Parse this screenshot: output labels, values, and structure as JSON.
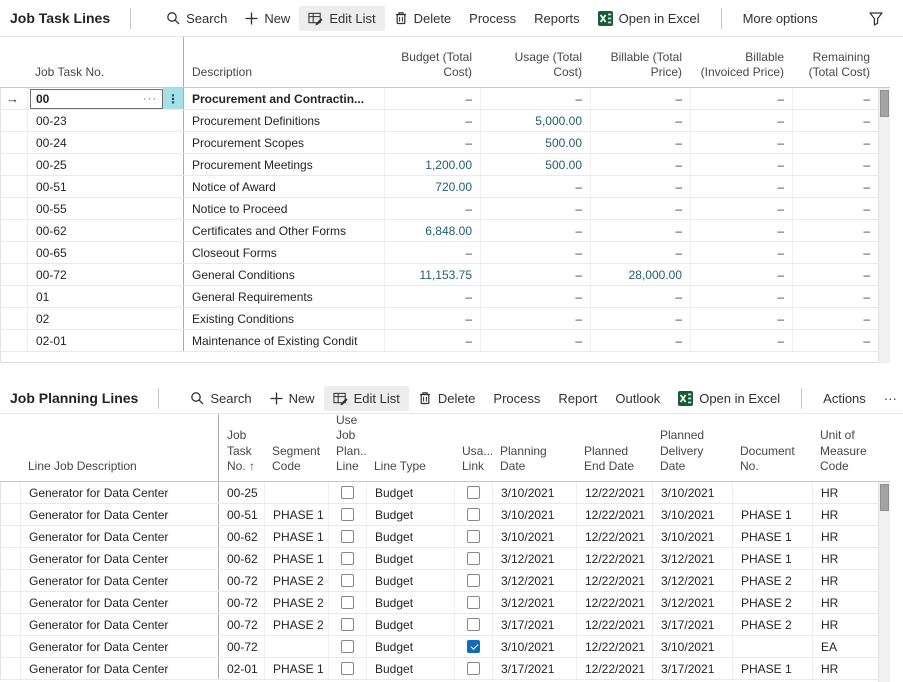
{
  "colors": {
    "selection_teal": "#a6e0e6",
    "value_link": "#1d5e6e",
    "checkbox_checked_blue": "#0f6cbd",
    "excel_green": "#185c37",
    "edit_list_chip": "#ededed"
  },
  "icons": {
    "assist_edit": "···",
    "row_menu": "⋮",
    "selected_row_arrow": "→",
    "more_ellipsis": "···"
  },
  "job_task_lines": {
    "title": "Job Task Lines",
    "toolbar": {
      "search": "Search",
      "new": "New",
      "edit_list": "Edit List",
      "delete": "Delete",
      "process": "Process",
      "reports": "Reports",
      "open_in_excel": "Open in Excel",
      "more_options": "More options"
    },
    "columns": [
      "Job Task No.",
      "Description",
      "Budget (Total Cost)",
      "Usage (Total Cost)",
      "Billable (Total Price)",
      "Billable (Invoiced Price)",
      "Remaining (Total Cost)"
    ],
    "rows": [
      {
        "no": "00",
        "desc": "Procurement and Contractin...",
        "values": [
          "–",
          "–",
          "–",
          "–",
          "–"
        ],
        "selected": true
      },
      {
        "no": "00-23",
        "desc": "Procurement Definitions",
        "values": [
          "–",
          "5,000.00",
          "–",
          "–",
          "–"
        ]
      },
      {
        "no": "00-24",
        "desc": "Procurement Scopes",
        "values": [
          "–",
          "500.00",
          "–",
          "–",
          "–"
        ]
      },
      {
        "no": "00-25",
        "desc": "Procurement Meetings",
        "values": [
          "1,200.00",
          "500.00",
          "–",
          "–",
          "–"
        ]
      },
      {
        "no": "00-51",
        "desc": "Notice of Award",
        "values": [
          "720.00",
          "–",
          "–",
          "–",
          "–"
        ]
      },
      {
        "no": "00-55",
        "desc": "Notice to Proceed",
        "values": [
          "–",
          "–",
          "–",
          "–",
          "–"
        ]
      },
      {
        "no": "00-62",
        "desc": "Certificates and Other Forms",
        "values": [
          "6,848.00",
          "–",
          "–",
          "–",
          "–"
        ]
      },
      {
        "no": "00-65",
        "desc": "Closeout Forms",
        "values": [
          "–",
          "–",
          "–",
          "–",
          "–"
        ]
      },
      {
        "no": "00-72",
        "desc": "General Conditions",
        "values": [
          "11,153.75",
          "–",
          "28,000.00",
          "–",
          "–"
        ]
      },
      {
        "no": "01",
        "desc": "General Requirements",
        "values": [
          "–",
          "–",
          "–",
          "–",
          "–"
        ]
      },
      {
        "no": "02",
        "desc": "Existing Conditions",
        "values": [
          "–",
          "–",
          "–",
          "–",
          "–"
        ]
      },
      {
        "no": "02-01",
        "desc": "Maintenance of Existing Condit",
        "values": [
          "–",
          "–",
          "–",
          "–",
          "–"
        ]
      }
    ]
  },
  "job_planning_lines": {
    "title": "Job Planning Lines",
    "toolbar": {
      "search": "Search",
      "new": "New",
      "edit_list": "Edit List",
      "delete": "Delete",
      "process": "Process",
      "report": "Report",
      "outlook": "Outlook",
      "open_in_excel": "Open in Excel",
      "actions": "Actions"
    },
    "columns": [
      "Line Job Description",
      "Job Task No. ↑",
      "Segment Code",
      "Use Job Plan... Line",
      "Line Type",
      "Usa... Link",
      "Planning Date",
      "Planned End Date",
      "Planned Delivery Date",
      "Document No.",
      "Unit of Measure Code"
    ],
    "rows": [
      {
        "desc": "Generator for Data Center",
        "task": "00-25",
        "segment": "",
        "use_job_plan_line": false,
        "line_type": "Budget",
        "usage_link": false,
        "planning_date": "3/10/2021",
        "planned_end_date": "12/22/2021",
        "planned_delivery_date": "3/10/2021",
        "document_no": "",
        "unit_of_measure": "HR"
      },
      {
        "desc": "Generator for Data Center",
        "task": "00-51",
        "segment": "PHASE 1",
        "use_job_plan_line": false,
        "line_type": "Budget",
        "usage_link": false,
        "planning_date": "3/10/2021",
        "planned_end_date": "12/22/2021",
        "planned_delivery_date": "3/10/2021",
        "document_no": "PHASE 1",
        "unit_of_measure": "HR"
      },
      {
        "desc": "Generator for Data Center",
        "task": "00-62",
        "segment": "PHASE 1",
        "use_job_plan_line": false,
        "line_type": "Budget",
        "usage_link": false,
        "planning_date": "3/10/2021",
        "planned_end_date": "12/22/2021",
        "planned_delivery_date": "3/10/2021",
        "document_no": "PHASE 1",
        "unit_of_measure": "HR"
      },
      {
        "desc": "Generator for Data Center",
        "task": "00-62",
        "segment": "PHASE 1",
        "use_job_plan_line": false,
        "line_type": "Budget",
        "usage_link": false,
        "planning_date": "3/12/2021",
        "planned_end_date": "12/22/2021",
        "planned_delivery_date": "3/12/2021",
        "document_no": "PHASE 1",
        "unit_of_measure": "HR"
      },
      {
        "desc": "Generator for Data Center",
        "task": "00-72",
        "segment": "PHASE 2",
        "use_job_plan_line": false,
        "line_type": "Budget",
        "usage_link": false,
        "planning_date": "3/12/2021",
        "planned_end_date": "12/22/2021",
        "planned_delivery_date": "3/12/2021",
        "document_no": "PHASE 2",
        "unit_of_measure": "HR"
      },
      {
        "desc": "Generator for Data Center",
        "task": "00-72",
        "segment": "PHASE 2",
        "use_job_plan_line": false,
        "line_type": "Budget",
        "usage_link": false,
        "planning_date": "3/12/2021",
        "planned_end_date": "12/22/2021",
        "planned_delivery_date": "3/12/2021",
        "document_no": "PHASE 2",
        "unit_of_measure": "HR"
      },
      {
        "desc": "Generator for Data Center",
        "task": "00-72",
        "segment": "PHASE 2",
        "use_job_plan_line": false,
        "line_type": "Budget",
        "usage_link": false,
        "planning_date": "3/17/2021",
        "planned_end_date": "12/22/2021",
        "planned_delivery_date": "3/17/2021",
        "document_no": "PHASE 2",
        "unit_of_measure": "HR"
      },
      {
        "desc": "Generator for Data Center",
        "task": "00-72",
        "segment": "",
        "use_job_plan_line": false,
        "line_type": "Budget",
        "usage_link": true,
        "planning_date": "3/10/2021",
        "planned_end_date": "12/22/2021",
        "planned_delivery_date": "3/10/2021",
        "document_no": "",
        "unit_of_measure": "EA"
      },
      {
        "desc": "Generator for Data Center",
        "task": "02-01",
        "segment": "PHASE 1",
        "use_job_plan_line": false,
        "line_type": "Budget",
        "usage_link": false,
        "planning_date": "3/17/2021",
        "planned_end_date": "12/22/2021",
        "planned_delivery_date": "3/17/2021",
        "document_no": "PHASE 1",
        "unit_of_measure": "HR"
      }
    ]
  }
}
